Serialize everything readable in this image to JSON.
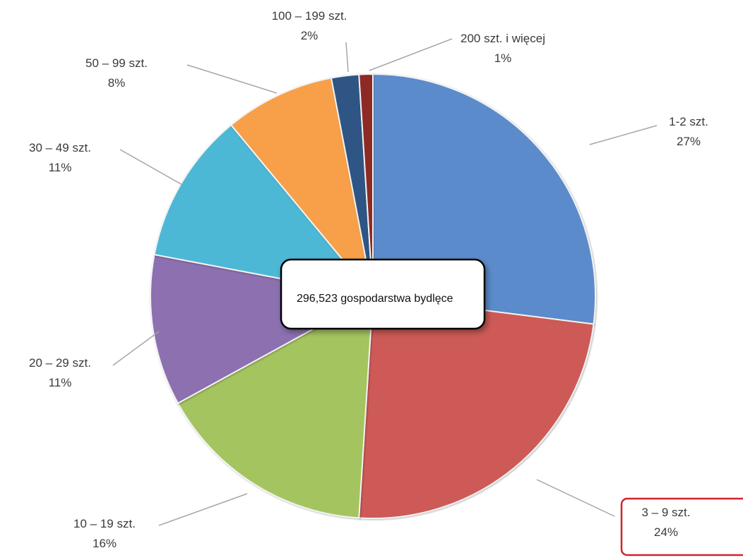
{
  "chart_data": {
    "type": "pie",
    "center_label": "296,523 gospodarstwa bydlęce",
    "slices": [
      {
        "label": "1-2 szt.",
        "percent_label": "27%",
        "value": 27,
        "color": "#5B8BCB"
      },
      {
        "label": "3 – 9 szt.",
        "percent_label": "24%",
        "value": 24,
        "color": "#CD5A57",
        "highlighted": true
      },
      {
        "label": "10 – 19 szt.",
        "percent_label": "16%",
        "value": 16,
        "color": "#A4C45E"
      },
      {
        "label": "20 – 29 szt.",
        "percent_label": "11%",
        "value": 11,
        "color": "#8C6FB0"
      },
      {
        "label": "30 – 49 szt.",
        "percent_label": "11%",
        "value": 11,
        "color": "#4EB7D6"
      },
      {
        "label": "50 – 99 szt.",
        "percent_label": "8%",
        "value": 8,
        "color": "#F8A04A"
      },
      {
        "label": "100 – 199 szt.",
        "percent_label": "2%",
        "value": 2,
        "color": "#2D5584"
      },
      {
        "label": "200 szt. i więcej",
        "percent_label": "1%",
        "value": 1,
        "color": "#8E2B28"
      }
    ],
    "highlight_color": "#D0242B"
  }
}
